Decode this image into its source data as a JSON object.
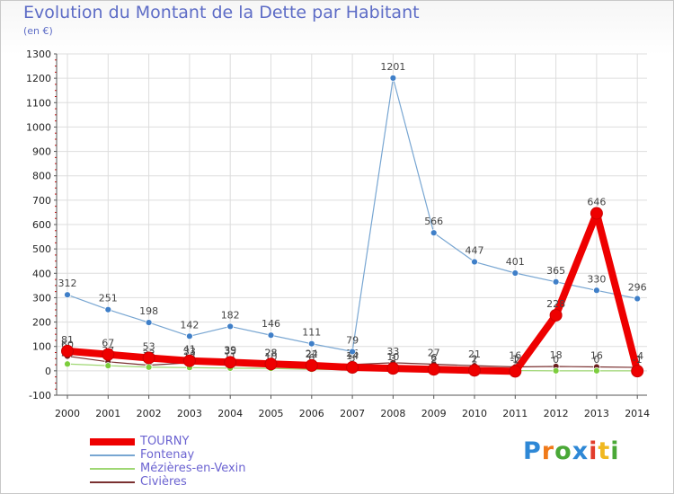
{
  "title": "Evolution du Montant de la Dette par Habitant",
  "unit": "(en €)",
  "logo_text": "Proxiti",
  "colors": {
    "title": "#5d6cc6",
    "grid": "#dddddd",
    "axis": "#555555",
    "tick_mark": "#cc0000"
  },
  "chart_data": {
    "type": "line",
    "x": [
      "2000",
      "2001",
      "2002",
      "2003",
      "2004",
      "2005",
      "2006",
      "2007",
      "2008",
      "2009",
      "2010",
      "2011",
      "2012",
      "2013",
      "2014"
    ],
    "ylim": [
      -100,
      1300
    ],
    "yticks": [
      -100,
      0,
      100,
      200,
      300,
      400,
      500,
      600,
      700,
      800,
      900,
      1000,
      1100,
      1200,
      1300
    ],
    "grid": true,
    "legend_position": "bottom-left",
    "series": [
      {
        "name": "TOURNY",
        "color": "#ee0000",
        "stroke_width": 8,
        "marker_color": "#ee0000",
        "values": [
          81,
          67,
          53,
          41,
          35,
          28,
          22,
          14,
          10,
          6,
          2,
          -2,
          228,
          646,
          -1
        ]
      },
      {
        "name": "Fontenay",
        "color": "#78a6d2",
        "stroke_width": 1.2,
        "marker_color": "#3f7fc8",
        "values": [
          312,
          251,
          198,
          142,
          182,
          146,
          111,
          79,
          1201,
          566,
          447,
          401,
          365,
          330,
          296
        ]
      },
      {
        "name": "Mézières-en-Vexin",
        "color": "#9fd773",
        "stroke_width": 1.2,
        "marker_color": "#7ccd3d",
        "values": [
          28,
          21,
          15,
          13,
          11,
          10,
          6,
          5,
          3,
          2,
          1,
          1,
          0,
          0,
          0
        ]
      },
      {
        "name": "Civières",
        "color": "#7a3030",
        "stroke_width": 1.2,
        "marker_color": "#6b1f1f",
        "values": [
          60,
          37,
          23,
          33,
          39,
          28,
          24,
          26,
          33,
          27,
          21,
          16,
          18,
          16,
          14
        ]
      }
    ]
  }
}
